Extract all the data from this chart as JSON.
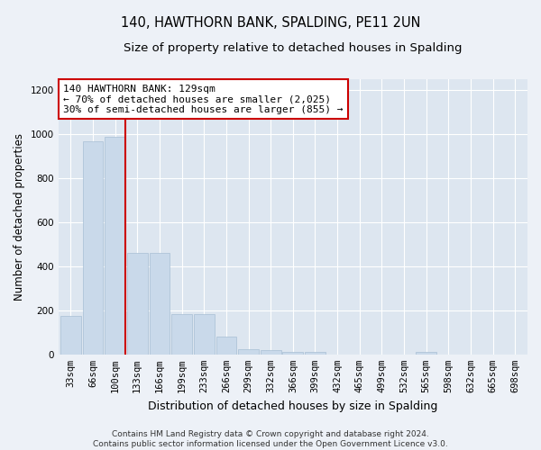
{
  "title": "140, HAWTHORN BANK, SPALDING, PE11 2UN",
  "subtitle": "Size of property relative to detached houses in Spalding",
  "xlabel": "Distribution of detached houses by size in Spalding",
  "ylabel": "Number of detached properties",
  "categories": [
    "33sqm",
    "66sqm",
    "100sqm",
    "133sqm",
    "166sqm",
    "199sqm",
    "233sqm",
    "266sqm",
    "299sqm",
    "332sqm",
    "366sqm",
    "399sqm",
    "432sqm",
    "465sqm",
    "499sqm",
    "532sqm",
    "565sqm",
    "598sqm",
    "632sqm",
    "665sqm",
    "698sqm"
  ],
  "values": [
    175,
    970,
    990,
    460,
    460,
    185,
    185,
    80,
    25,
    20,
    13,
    10,
    0,
    0,
    0,
    0,
    13,
    0,
    0,
    0,
    0
  ],
  "bar_color": "#c9d9ea",
  "bar_edge_color": "#a8bfd4",
  "vline_color": "#cc0000",
  "annotation_text": "140 HAWTHORN BANK: 129sqm\n← 70% of detached houses are smaller (2,025)\n30% of semi-detached houses are larger (855) →",
  "annotation_box_color": "#ffffff",
  "annotation_box_edge_color": "#cc0000",
  "ylim": [
    0,
    1250
  ],
  "yticks": [
    0,
    200,
    400,
    600,
    800,
    1000,
    1200
  ],
  "plot_bg_color": "#dde6f0",
  "fig_bg_color": "#edf1f7",
  "footer_text": "Contains HM Land Registry data © Crown copyright and database right 2024.\nContains public sector information licensed under the Open Government Licence v3.0.",
  "title_fontsize": 10.5,
  "subtitle_fontsize": 9.5,
  "xlabel_fontsize": 9,
  "ylabel_fontsize": 8.5,
  "tick_fontsize": 7.5,
  "annotation_fontsize": 8,
  "footer_fontsize": 6.5
}
